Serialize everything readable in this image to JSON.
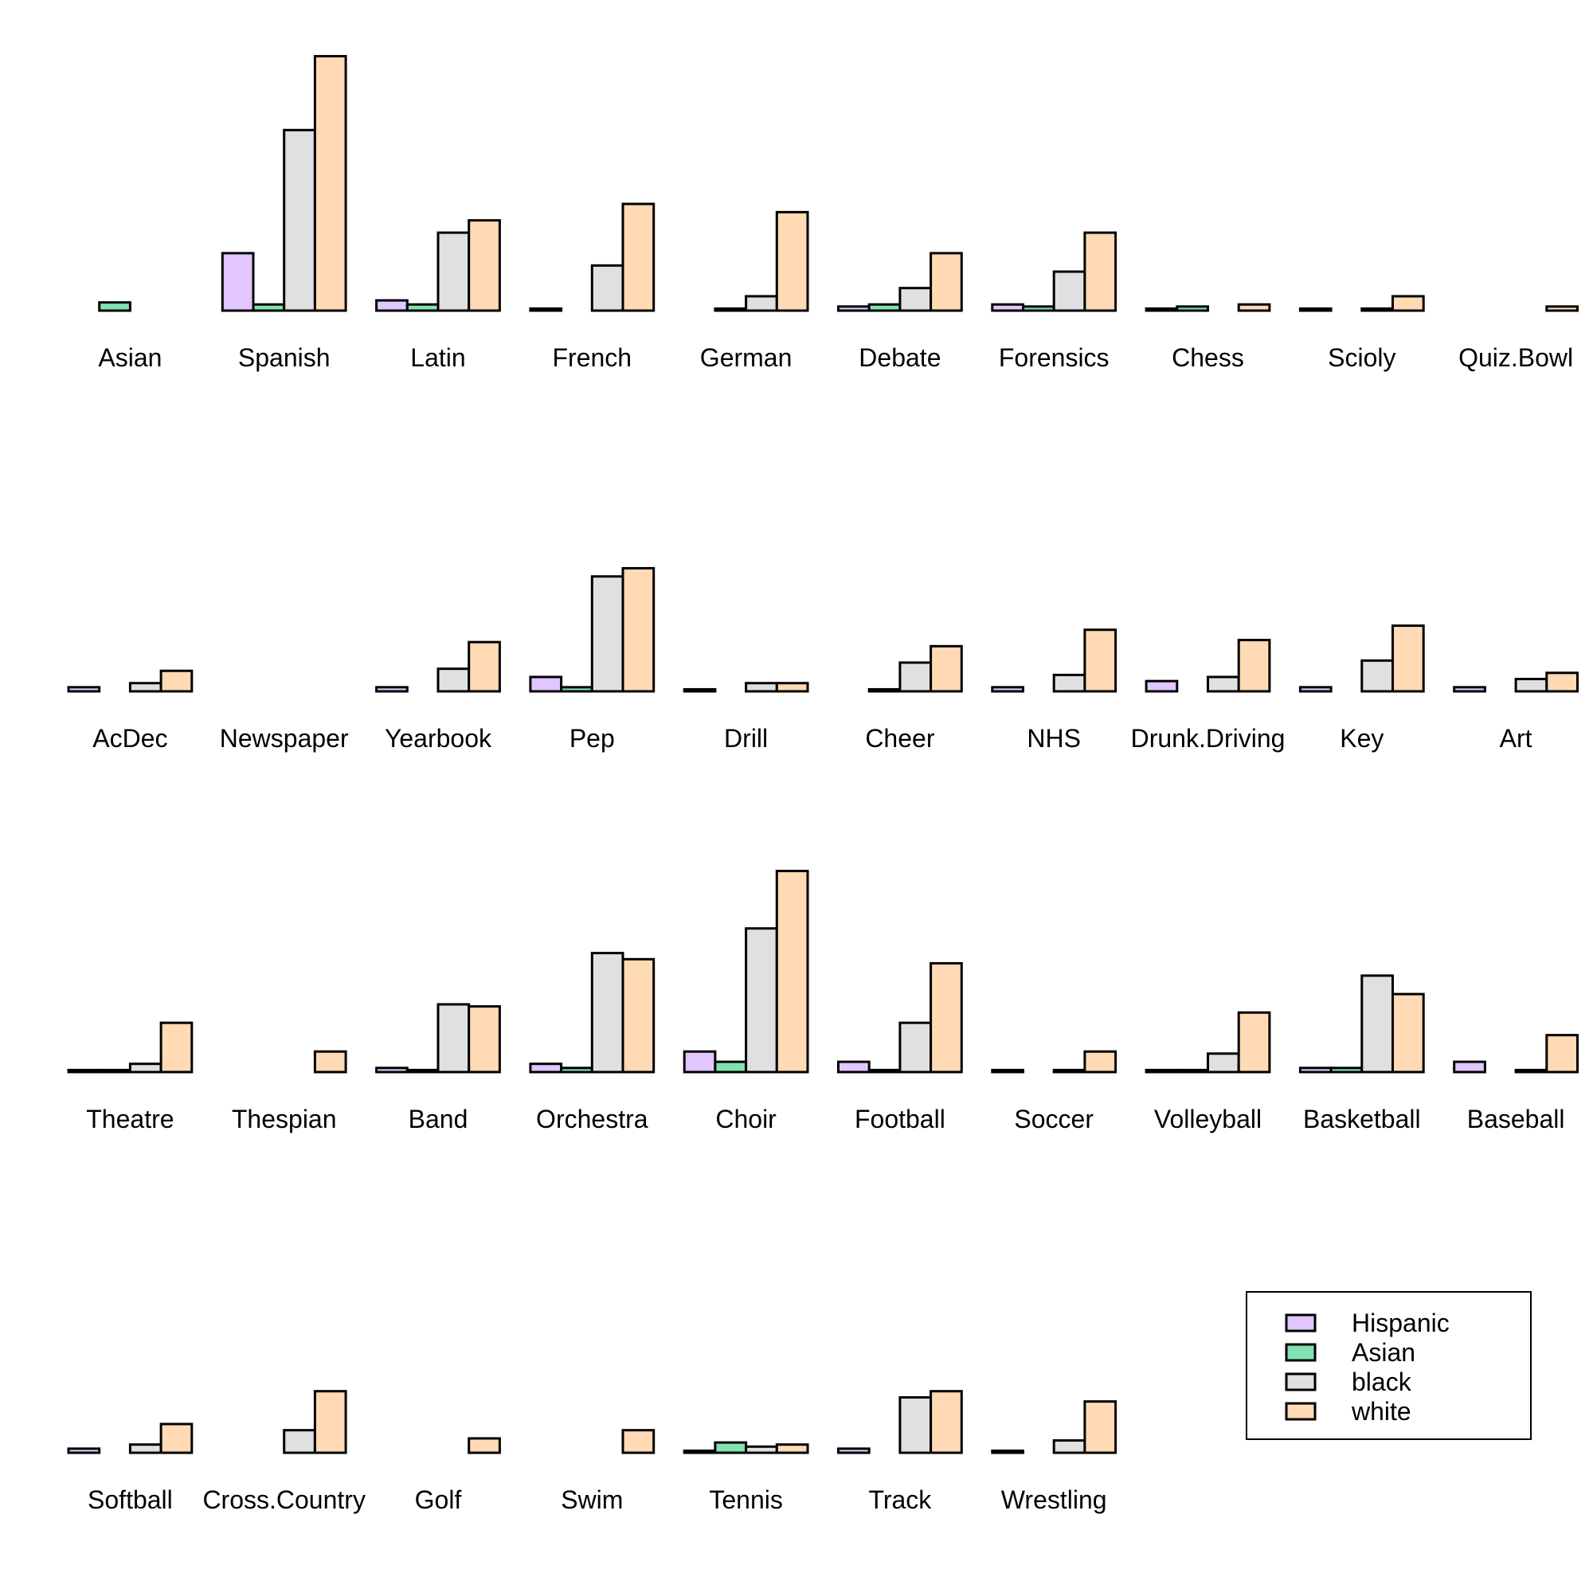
{
  "chart_data": {
    "type": "bar",
    "layout": "small-multiples",
    "title": "",
    "xlabel": "",
    "ylabel": "",
    "grid": false,
    "legend_position": "bottom-right",
    "ylim": [
      0,
      125
    ],
    "series_names": [
      "Hispanic",
      "Asian",
      "black",
      "white"
    ],
    "colors": {
      "Hispanic": "#e1c6ff",
      "Asian": "#7fe2b0",
      "black": "#e0e0e0",
      "white": "#ffdab4"
    },
    "panels": [
      {
        "name": "Asian",
        "values": [
          0,
          4,
          0,
          0
        ]
      },
      {
        "name": "Spanish",
        "values": [
          28,
          3,
          88,
          124
        ]
      },
      {
        "name": "Latin",
        "values": [
          5,
          3,
          38,
          44
        ]
      },
      {
        "name": "French",
        "values": [
          1,
          0,
          22,
          52
        ]
      },
      {
        "name": "German",
        "values": [
          0,
          1,
          7,
          48
        ]
      },
      {
        "name": "Debate",
        "values": [
          2,
          3,
          11,
          28
        ]
      },
      {
        "name": "Forensics",
        "values": [
          3,
          2,
          19,
          38
        ]
      },
      {
        "name": "Chess",
        "values": [
          1,
          2,
          0,
          3
        ]
      },
      {
        "name": "Scioly",
        "values": [
          1,
          0,
          1,
          7
        ]
      },
      {
        "name": "Quiz.Bowl",
        "values": [
          0,
          0,
          0,
          2
        ]
      },
      {
        "name": "AcDec",
        "values": [
          2,
          0,
          4,
          10
        ]
      },
      {
        "name": "Newspaper",
        "values": [
          0,
          0,
          0,
          0
        ]
      },
      {
        "name": "Yearbook",
        "values": [
          2,
          0,
          11,
          24
        ]
      },
      {
        "name": "Pep",
        "values": [
          7,
          2,
          56,
          60
        ]
      },
      {
        "name": "Drill",
        "values": [
          1,
          0,
          4,
          4
        ]
      },
      {
        "name": "Cheer",
        "values": [
          0,
          1,
          14,
          22
        ]
      },
      {
        "name": "NHS",
        "values": [
          2,
          0,
          8,
          30
        ]
      },
      {
        "name": "Drunk.Driving",
        "values": [
          5,
          0,
          7,
          25
        ]
      },
      {
        "name": "Key",
        "values": [
          2,
          0,
          15,
          32
        ]
      },
      {
        "name": "Art",
        "values": [
          2,
          0,
          6,
          9
        ]
      },
      {
        "name": "Theatre",
        "values": [
          1,
          1,
          4,
          24
        ]
      },
      {
        "name": "Thespian",
        "values": [
          0,
          0,
          0,
          10
        ]
      },
      {
        "name": "Band",
        "values": [
          2,
          1,
          33,
          32
        ]
      },
      {
        "name": "Orchestra",
        "values": [
          4,
          2,
          58,
          55
        ]
      },
      {
        "name": "Choir",
        "values": [
          10,
          5,
          70,
          98
        ]
      },
      {
        "name": "Football",
        "values": [
          5,
          1,
          24,
          53
        ]
      },
      {
        "name": "Soccer",
        "values": [
          1,
          0,
          1,
          10
        ]
      },
      {
        "name": "Volleyball",
        "values": [
          1,
          1,
          9,
          29
        ]
      },
      {
        "name": "Basketball",
        "values": [
          2,
          2,
          47,
          38
        ]
      },
      {
        "name": "Baseball",
        "values": [
          5,
          0,
          1,
          18
        ]
      },
      {
        "name": "Softball",
        "values": [
          2,
          0,
          4,
          14
        ]
      },
      {
        "name": "Cross.Country",
        "values": [
          0,
          0,
          11,
          30
        ]
      },
      {
        "name": "Golf",
        "values": [
          0,
          0,
          0,
          7
        ]
      },
      {
        "name": "Swim",
        "values": [
          0,
          0,
          0,
          11
        ]
      },
      {
        "name": "Tennis",
        "values": [
          1,
          5,
          3,
          4
        ]
      },
      {
        "name": "Track",
        "values": [
          2,
          0,
          27,
          30
        ]
      },
      {
        "name": "Wrestling",
        "values": [
          1,
          0,
          6,
          25
        ]
      }
    ]
  }
}
